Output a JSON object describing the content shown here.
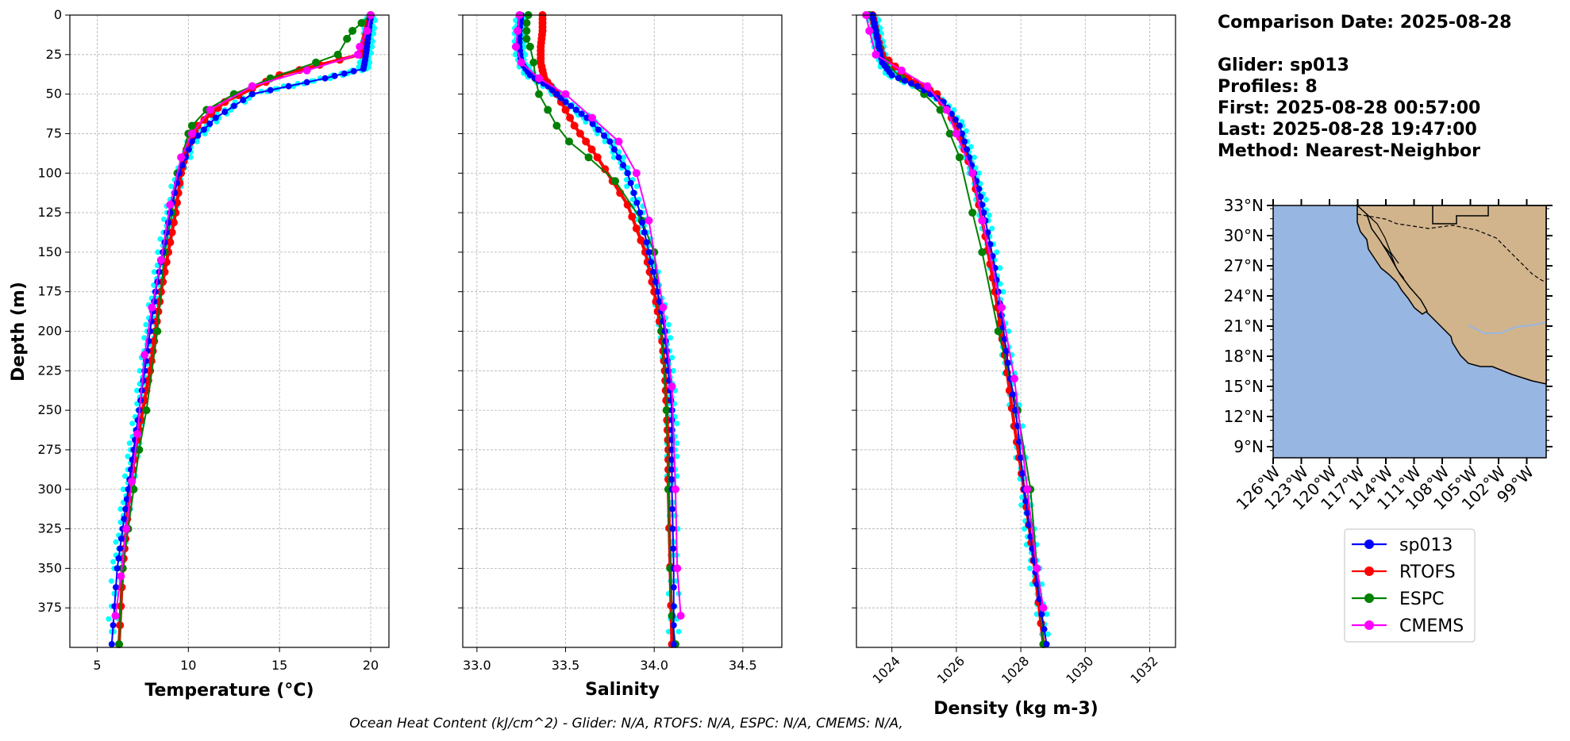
{
  "colors": {
    "sp013": "#0000ff",
    "sp013_cloud": "#00ffff",
    "RTOFS": "#ff0000",
    "ESPC": "#008000",
    "CMEMS": "#ff00ff",
    "ocean": "#97b6e1",
    "land": "#d2b48c",
    "grid": "#b0b0b0"
  },
  "info": {
    "comparison": "Comparison Date: 2025-08-28",
    "glider": "Glider: sp013",
    "profiles": "Profiles: 8",
    "first": "First: 2025-08-28 00:57:00",
    "last": "Last: 2025-08-28 19:47:00",
    "method": "Method: Nearest-Neighbor"
  },
  "footer": "Ocean Heat Content (kJ/cm^2) - Glider: N/A,  RTOFS: N/A,  ESPC: N/A,  CMEMS: N/A,",
  "legend": [
    "sp013",
    "RTOFS",
    "ESPC",
    "CMEMS"
  ],
  "chart_data": [
    {
      "type": "line",
      "xlabel": "Temperature (°C)",
      "ylabel": "Depth (m)",
      "xlim": [
        3.5,
        21
      ],
      "ylim": [
        400,
        0
      ],
      "xticks": [
        5,
        10,
        15,
        20
      ],
      "yticks": [
        0,
        25,
        50,
        75,
        100,
        125,
        150,
        175,
        200,
        225,
        250,
        275,
        300,
        325,
        350,
        375
      ],
      "grid": true,
      "series": [
        {
          "name": "sp013",
          "x": [
            20.0,
            19.9,
            19.8,
            19.7,
            19.6,
            17.5,
            13.5,
            11.5,
            10.2,
            9.5,
            9.0,
            8.6,
            8.2,
            7.9,
            7.6,
            7.3,
            7.0,
            6.7,
            6.4,
            6.1,
            5.8
          ],
          "y": [
            0,
            10,
            20,
            28,
            34,
            40,
            50,
            65,
            80,
            100,
            125,
            150,
            175,
            200,
            225,
            250,
            275,
            300,
            325,
            350,
            398
          ]
        },
        {
          "name": "RTOFS",
          "x": [
            20.0,
            19.8,
            19.6,
            19.4,
            15.0,
            12.0,
            10.5,
            9.9,
            9.6,
            9.3,
            8.9,
            8.5,
            8.2,
            7.9,
            7.5,
            7.1,
            6.8,
            6.6,
            6.4,
            6.2
          ],
          "y": [
            0,
            10,
            20,
            25,
            38,
            55,
            70,
            85,
            100,
            125,
            150,
            175,
            200,
            225,
            250,
            275,
            300,
            325,
            350,
            398
          ]
        },
        {
          "name": "ESPC",
          "x": [
            20.0,
            19.5,
            19.0,
            18.7,
            18.2,
            17.0,
            14.5,
            12.5,
            11.0,
            10.2,
            10.0,
            9.4,
            9.1,
            8.7,
            8.3,
            7.7,
            7.3,
            7.0,
            6.7,
            6.4,
            6.2
          ],
          "y": [
            0,
            5,
            10,
            15,
            25,
            30,
            40,
            50,
            60,
            70,
            75,
            100,
            125,
            150,
            200,
            250,
            275,
            300,
            325,
            350,
            398
          ]
        },
        {
          "name": "CMEMS",
          "x": [
            20.0,
            19.8,
            19.4,
            19.3,
            16.5,
            13.5,
            11.2,
            10.2,
            9.6,
            9.0,
            8.5,
            8.0,
            7.6,
            7.2,
            6.9,
            6.6,
            6.3,
            6.0
          ],
          "y": [
            0,
            10,
            20,
            25,
            35,
            45,
            60,
            75,
            90,
            120,
            155,
            185,
            215,
            265,
            295,
            325,
            355,
            380
          ]
        }
      ]
    },
    {
      "type": "line",
      "xlabel": "Salinity",
      "xlim": [
        32.92,
        34.72
      ],
      "ylim": [
        400,
        0
      ],
      "xticks": [
        33.0,
        33.5,
        34.0,
        34.5
      ],
      "grid": true,
      "series": [
        {
          "name": "sp013",
          "x": [
            33.25,
            33.24,
            33.24,
            33.25,
            33.3,
            33.4,
            33.5,
            33.62,
            33.75,
            33.85,
            33.92,
            33.97,
            34.02,
            34.06,
            34.08,
            34.1,
            34.1,
            34.1,
            34.11,
            34.11
          ],
          "y": [
            0,
            10,
            20,
            30,
            38,
            45,
            55,
            65,
            80,
            100,
            125,
            150,
            175,
            200,
            225,
            250,
            275,
            300,
            350,
            398
          ]
        },
        {
          "name": "RTOFS",
          "x": [
            33.37,
            33.37,
            33.36,
            33.36,
            33.38,
            33.45,
            33.55,
            33.68,
            33.85,
            33.95,
            34.0,
            34.04,
            34.06,
            34.07,
            34.08,
            34.08,
            34.1
          ],
          "y": [
            0,
            10,
            20,
            30,
            40,
            50,
            70,
            90,
            120,
            150,
            175,
            200,
            225,
            250,
            275,
            300,
            398
          ]
        },
        {
          "name": "ESPC",
          "x": [
            33.29,
            33.28,
            33.28,
            33.28,
            33.3,
            33.32,
            33.33,
            33.35,
            33.4,
            33.45,
            33.52,
            33.63,
            33.78,
            33.93,
            34.0,
            34.04,
            34.07,
            34.08,
            34.09,
            34.1,
            34.12
          ],
          "y": [
            0,
            5,
            10,
            15,
            20,
            30,
            40,
            50,
            60,
            70,
            80,
            90,
            105,
            130,
            150,
            200,
            250,
            300,
            350,
            380,
            398
          ]
        },
        {
          "name": "CMEMS",
          "x": [
            33.24,
            33.23,
            33.22,
            33.25,
            33.35,
            33.5,
            33.65,
            33.8,
            33.9,
            33.97,
            34.05,
            34.1,
            34.12,
            34.13,
            34.15
          ],
          "y": [
            0,
            10,
            20,
            30,
            40,
            50,
            65,
            80,
            100,
            130,
            185,
            235,
            300,
            350,
            380
          ]
        }
      ]
    },
    {
      "type": "line",
      "xlabel": "Density (kg m-3)",
      "xlim": [
        1022.9,
        1032.8
      ],
      "ylim": [
        400,
        0
      ],
      "xticks": [
        1024,
        1026,
        1028,
        1030,
        1032
      ],
      "grid": true,
      "series": [
        {
          "name": "sp013",
          "x": [
            1023.4,
            1023.5,
            1023.6,
            1023.7,
            1024.0,
            1024.8,
            1025.6,
            1026.1,
            1026.4,
            1026.7,
            1026.9,
            1027.2,
            1027.4,
            1027.6,
            1027.9,
            1028.1,
            1028.3,
            1028.5,
            1028.8
          ],
          "y": [
            0,
            10,
            20,
            30,
            38,
            45,
            55,
            70,
            90,
            110,
            130,
            160,
            190,
            220,
            260,
            300,
            330,
            360,
            398
          ]
        },
        {
          "name": "RTOFS",
          "x": [
            1023.4,
            1023.5,
            1023.7,
            1024.5,
            1025.4,
            1026.0,
            1026.5,
            1026.9,
            1027.2,
            1027.5,
            1027.8,
            1028.1,
            1028.4,
            1028.7
          ],
          "y": [
            0,
            10,
            25,
            40,
            50,
            70,
            100,
            140,
            175,
            215,
            260,
            300,
            345,
            398
          ]
        },
        {
          "name": "ESPC",
          "x": [
            1023.3,
            1023.5,
            1023.6,
            1023.8,
            1024.3,
            1025.0,
            1025.5,
            1025.8,
            1026.1,
            1026.5,
            1026.8,
            1027.3,
            1027.9,
            1028.3,
            1028.7
          ],
          "y": [
            0,
            10,
            20,
            30,
            40,
            50,
            60,
            75,
            90,
            125,
            150,
            200,
            250,
            300,
            398
          ]
        },
        {
          "name": "CMEMS",
          "x": [
            1023.2,
            1023.3,
            1023.5,
            1024.3,
            1025.1,
            1025.7,
            1026.0,
            1026.5,
            1026.8,
            1027.4,
            1027.8,
            1028.2,
            1028.5,
            1028.7
          ],
          "y": [
            0,
            10,
            25,
            35,
            45,
            60,
            75,
            100,
            130,
            185,
            230,
            300,
            350,
            375
          ]
        }
      ]
    }
  ],
  "map": {
    "lat_labels": [
      "33°N",
      "30°N",
      "27°N",
      "24°N",
      "21°N",
      "18°N",
      "15°N",
      "12°N",
      "9°N"
    ],
    "lon_labels": [
      "126°W",
      "123°W",
      "120°W",
      "117°W",
      "114°W",
      "111°W",
      "108°W",
      "105°W",
      "102°W",
      "99°W"
    ]
  }
}
